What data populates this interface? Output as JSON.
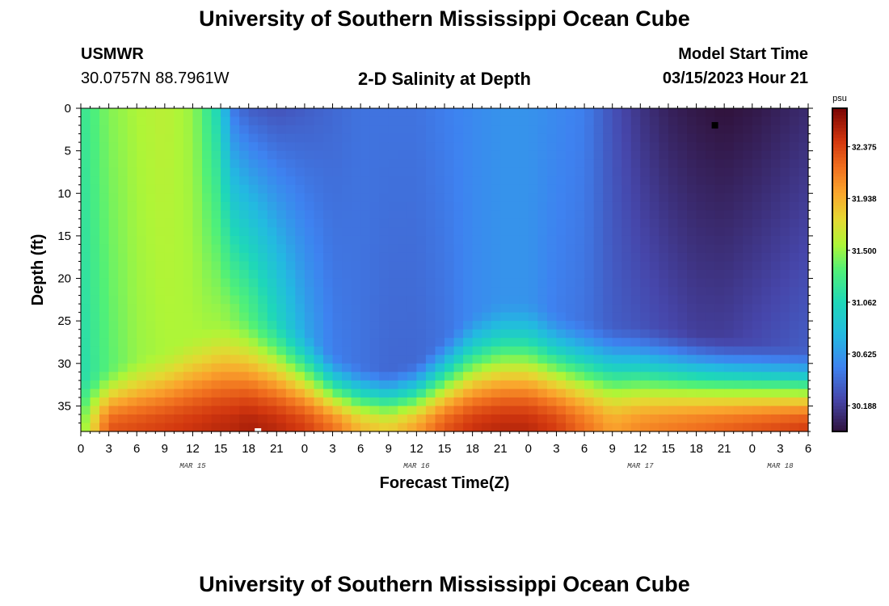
{
  "page": {
    "title_top": "University of Southern Mississippi Ocean Cube",
    "title_bottom": "University of Southern Mississippi Ocean Cube",
    "station": "USMWR",
    "coords": "30.0757N  88.7961W",
    "subtitle": "2-D Salinity at Depth",
    "model_start_label": "Model Start Time",
    "model_start_value": "03/15/2023 Hour 21"
  },
  "chart_data": {
    "type": "heatmap",
    "title": "2-D Salinity at Depth",
    "xlabel": "Forecast Time(Z)",
    "ylabel": "Depth (ft)",
    "x_ticks": [
      "0",
      "3",
      "6",
      "9",
      "12",
      "15",
      "18",
      "21",
      "0",
      "3",
      "6",
      "9",
      "12",
      "15",
      "18",
      "21",
      "0",
      "3",
      "6",
      "9",
      "12",
      "15",
      "18",
      "21",
      "0",
      "3",
      "6"
    ],
    "x_hours_range": [
      0,
      78
    ],
    "date_labels": [
      {
        "label": "MAR 15",
        "hour": 12
      },
      {
        "label": "MAR 16",
        "hour": 36
      },
      {
        "label": "MAR 17",
        "hour": 60
      },
      {
        "label": "MAR 18",
        "hour": 75
      }
    ],
    "y_ticks": [
      "0",
      "5",
      "10",
      "15",
      "20",
      "25",
      "30",
      "35"
    ],
    "y_tick_values": [
      0,
      5,
      10,
      15,
      20,
      25,
      30,
      35
    ],
    "y_range": [
      0,
      38
    ],
    "colorbar": {
      "unit": "psu",
      "range": [
        29.97,
        32.7
      ],
      "ticks": [
        "32.375",
        "31.938",
        "31.500",
        "31.062",
        "30.625",
        "30.188"
      ],
      "tick_values": [
        32.375,
        31.938,
        31.5,
        31.062,
        30.625,
        30.188
      ]
    },
    "field_profiles": [
      {
        "hour": 0,
        "surface": 31.2,
        "mid_low": 31.1,
        "bottom": 31.4,
        "halocline_ft": 35
      },
      {
        "hour": 3,
        "surface": 31.45,
        "mid_low": 31.35,
        "bottom": 32.3,
        "halocline_ft": 34
      },
      {
        "hour": 6,
        "surface": 31.55,
        "mid_low": 31.5,
        "bottom": 32.35,
        "halocline_ft": 33
      },
      {
        "hour": 9,
        "surface": 31.6,
        "mid_low": 31.55,
        "bottom": 32.4,
        "halocline_ft": 32
      },
      {
        "hour": 12,
        "surface": 31.5,
        "mid_low": 31.55,
        "bottom": 32.45,
        "halocline_ft": 30
      },
      {
        "hour": 15,
        "surface": 31.0,
        "mid_low": 31.5,
        "bottom": 32.5,
        "halocline_ft": 28
      },
      {
        "hour": 16,
        "surface": 30.5,
        "mid_low": 31.45,
        "bottom": 32.5,
        "halocline_ft": 27.5
      },
      {
        "hour": 18,
        "surface": 30.35,
        "mid_low": 31.3,
        "bottom": 32.55,
        "halocline_ft": 27
      },
      {
        "hour": 21,
        "surface": 30.3,
        "mid_low": 31.0,
        "bottom": 32.5,
        "halocline_ft": 27.5
      },
      {
        "hour": 24,
        "surface": 30.35,
        "mid_low": 30.7,
        "bottom": 32.4,
        "halocline_ft": 29.5
      },
      {
        "hour": 27,
        "surface": 30.4,
        "mid_low": 30.5,
        "bottom": 32.2,
        "halocline_ft": 32.5
      },
      {
        "hour": 30,
        "surface": 30.45,
        "mid_low": 30.45,
        "bottom": 31.9,
        "halocline_ft": 34
      },
      {
        "hour": 33,
        "surface": 30.45,
        "mid_low": 30.4,
        "bottom": 31.8,
        "halocline_ft": 34.5
      },
      {
        "hour": 36,
        "surface": 30.45,
        "mid_low": 30.4,
        "bottom": 32.0,
        "halocline_ft": 33.5
      },
      {
        "hour": 39,
        "surface": 30.5,
        "mid_low": 30.45,
        "bottom": 32.3,
        "halocline_ft": 30.5
      },
      {
        "hour": 42,
        "surface": 30.55,
        "mid_low": 30.55,
        "bottom": 32.45,
        "halocline_ft": 27.5
      },
      {
        "hour": 45,
        "surface": 30.6,
        "mid_low": 30.6,
        "bottom": 32.5,
        "halocline_ft": 26
      },
      {
        "hour": 48,
        "surface": 30.6,
        "mid_low": 30.6,
        "bottom": 32.5,
        "halocline_ft": 26
      },
      {
        "hour": 51,
        "surface": 30.55,
        "mid_low": 30.5,
        "bottom": 32.4,
        "halocline_ft": 27.5
      },
      {
        "hour": 54,
        "surface": 30.5,
        "mid_low": 30.45,
        "bottom": 32.2,
        "halocline_ft": 28.5
      },
      {
        "hour": 57,
        "surface": 30.3,
        "mid_low": 30.35,
        "bottom": 32.0,
        "halocline_ft": 29
      },
      {
        "hour": 60,
        "surface": 30.15,
        "mid_low": 30.3,
        "bottom": 32.1,
        "halocline_ft": 29
      },
      {
        "hour": 63,
        "surface": 30.05,
        "mid_low": 30.25,
        "bottom": 32.15,
        "halocline_ft": 29.5
      },
      {
        "hour": 66,
        "surface": 30.0,
        "mid_low": 30.2,
        "bottom": 32.2,
        "halocline_ft": 30
      },
      {
        "hour": 69,
        "surface": 29.97,
        "mid_low": 30.2,
        "bottom": 32.25,
        "halocline_ft": 30.5
      },
      {
        "hour": 72,
        "surface": 30.0,
        "mid_low": 30.25,
        "bottom": 32.3,
        "halocline_ft": 31
      },
      {
        "hour": 75,
        "surface": 30.05,
        "mid_low": 30.3,
        "bottom": 32.35,
        "halocline_ft": 31.5
      },
      {
        "hour": 78,
        "surface": 30.1,
        "mid_low": 30.35,
        "bottom": 32.4,
        "halocline_ft": 32
      }
    ],
    "markers": [
      {
        "name": "surface-marker",
        "hour": 68,
        "depth_ft": 2,
        "color": "#000000"
      },
      {
        "name": "bottom-marker",
        "hour": 19,
        "depth_ft": 38,
        "color": "#ffffff"
      }
    ]
  }
}
